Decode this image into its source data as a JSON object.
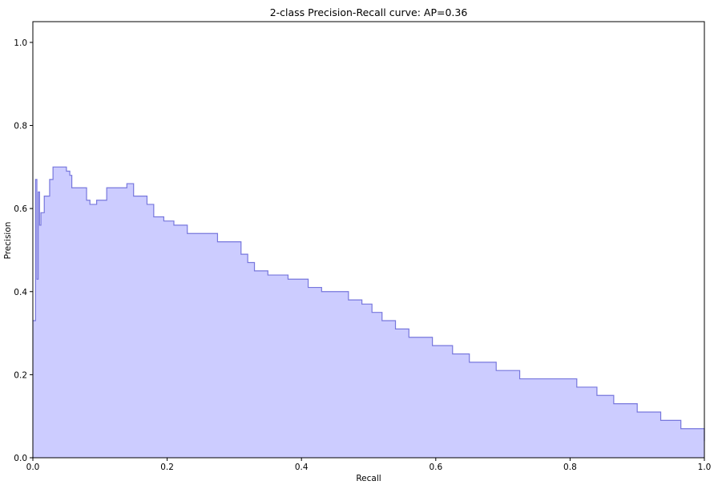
{
  "chart_data": {
    "type": "area",
    "title": "2-class Precision-Recall curve: AP=0.36",
    "xlabel": "Recall",
    "ylabel": "Precision",
    "xlim": [
      0.0,
      1.0
    ],
    "ylim": [
      0.0,
      1.05
    ],
    "xticks": [
      "0.0",
      "0.2",
      "0.4",
      "0.6",
      "0.8",
      "1.0"
    ],
    "yticks": [
      "0.0",
      "0.2",
      "0.4",
      "0.6",
      "0.8",
      "1.0"
    ],
    "grid": false,
    "step": "post",
    "fill_color": "#ccccff",
    "line_color": "#7777dd",
    "series": [
      {
        "x": [
          0.0,
          0.004,
          0.006,
          0.008,
          0.01,
          0.012,
          0.017,
          0.025,
          0.03,
          0.038,
          0.05,
          0.055,
          0.058,
          0.062,
          0.08,
          0.085,
          0.095,
          0.11,
          0.14,
          0.15,
          0.17,
          0.18,
          0.195,
          0.21,
          0.23,
          0.24,
          0.26,
          0.275,
          0.3,
          0.31,
          0.32,
          0.33,
          0.345,
          0.35,
          0.38,
          0.395,
          0.41,
          0.43,
          0.47,
          0.49,
          0.505,
          0.52,
          0.54,
          0.56,
          0.595,
          0.625,
          0.65,
          0.69,
          0.725,
          0.775,
          0.81,
          0.84,
          0.865,
          0.9,
          0.935,
          0.965,
          1.0
        ],
        "y": [
          0.33,
          0.67,
          0.43,
          0.64,
          0.56,
          0.59,
          0.63,
          0.67,
          0.7,
          0.7,
          0.69,
          0.68,
          0.65,
          0.65,
          0.62,
          0.61,
          0.62,
          0.65,
          0.66,
          0.63,
          0.61,
          0.58,
          0.57,
          0.56,
          0.54,
          0.54,
          0.54,
          0.52,
          0.52,
          0.49,
          0.47,
          0.45,
          0.45,
          0.44,
          0.43,
          0.43,
          0.41,
          0.4,
          0.38,
          0.37,
          0.35,
          0.33,
          0.31,
          0.29,
          0.27,
          0.25,
          0.23,
          0.21,
          0.19,
          0.19,
          0.17,
          0.15,
          0.13,
          0.11,
          0.09,
          0.07,
          0.04
        ]
      }
    ]
  }
}
